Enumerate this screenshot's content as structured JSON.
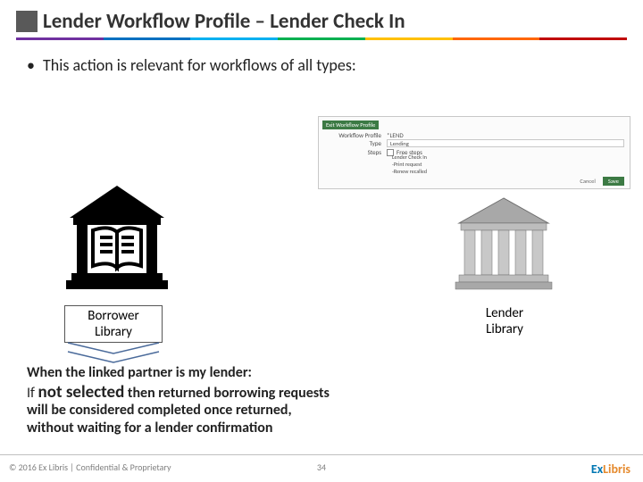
{
  "title": "Lender Workflow Profile – Lender Check In",
  "rainbow_colors": [
    "#7030a0",
    "#0070c0",
    "#00b0f0",
    "#00b050",
    "#ffc000",
    "#ff6600",
    "#c00000"
  ],
  "bullet": "This action is relevant for workflows of all types:",
  "panel": {
    "title_btn": "Exit Workflow Profile",
    "rows": {
      "workflow_label": "Workflow Profile",
      "workflow_value": "*LEND",
      "type_label": "Type",
      "type_value": "Lending",
      "steps_label": "Steps",
      "steps_value": "Free steps"
    },
    "steps": {
      "s1": "Lender Check In",
      "s2": "-Print request",
      "s3": "-Renew recalled"
    },
    "cancel": "Cancel",
    "save": "Save"
  },
  "borrower": {
    "line1": "Borrower",
    "line2": "Library"
  },
  "lender": {
    "line1": "Lender",
    "line2": "Library"
  },
  "explain": {
    "l1": "When the linked partner is my lender:",
    "l2a": "If ",
    "l2b": "not selected",
    "l2c": " then returned borrowing requests",
    "l3": "will be considered completed once returned,",
    "l4": "without waiting for a lender confirmation"
  },
  "footer": {
    "left": "© 2016 Ex Libris | Confidential & Proprietary",
    "page": "34",
    "logo_ex": "Ex",
    "logo_libris": "Libris"
  }
}
